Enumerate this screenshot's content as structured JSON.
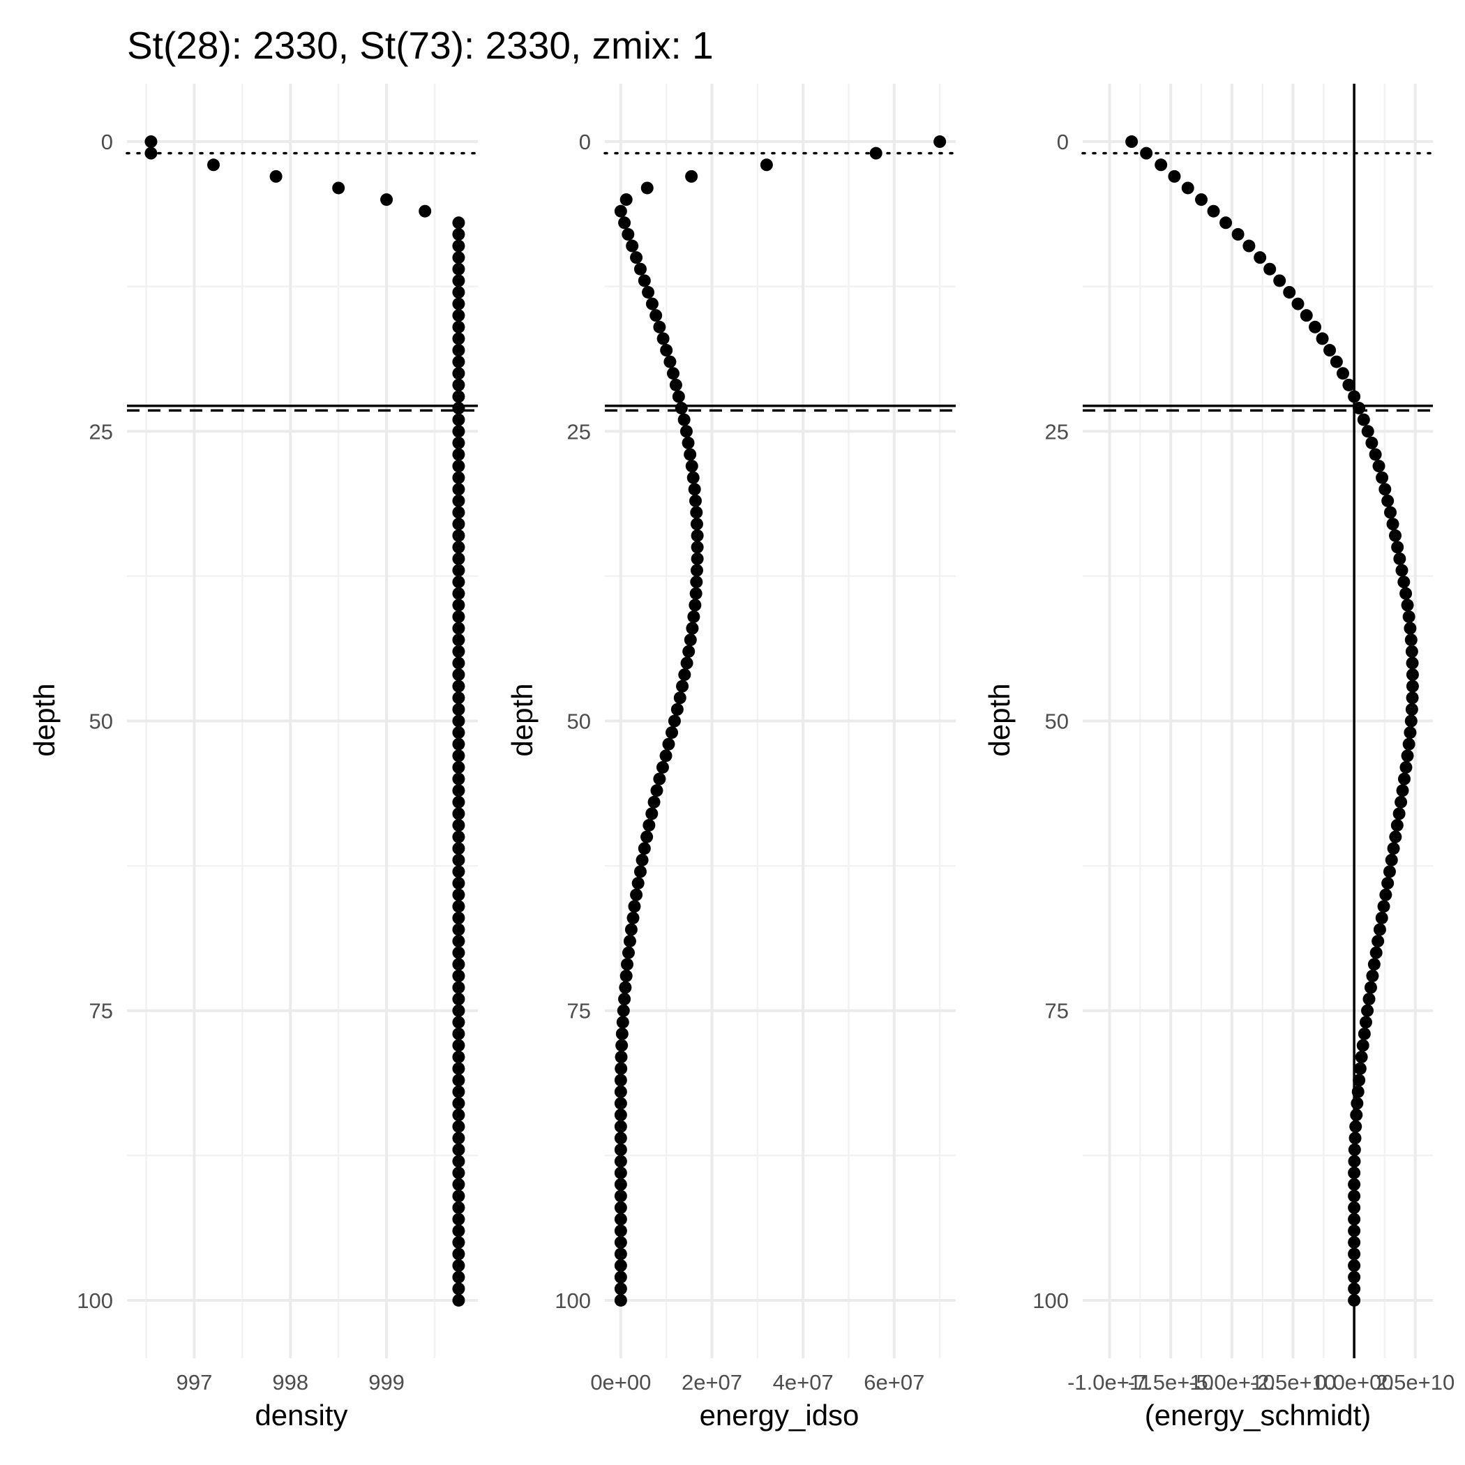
{
  "title": "St(28): 2330, St(73): 2330, zmix: 1",
  "reference_lines": {
    "zmix_depth": 1,
    "solid_depth": 22.8,
    "dashed_depth": 23.2,
    "vertical_zero_panel": 3
  },
  "chart_data": [
    {
      "type": "scatter",
      "xlabel": "density",
      "ylabel": "depth",
      "xlim": [
        996.3,
        999.95
      ],
      "ylim": [
        105,
        -5
      ],
      "y_reversed": true,
      "x_ticks": [
        {
          "value": 997,
          "label": "997"
        },
        {
          "value": 998,
          "label": "998"
        },
        {
          "value": 999,
          "label": "999"
        }
      ],
      "y_ticks": [
        {
          "value": 0,
          "label": "0"
        },
        {
          "value": 25,
          "label": "25"
        },
        {
          "value": 50,
          "label": "50"
        },
        {
          "value": 75,
          "label": "75"
        },
        {
          "value": 100,
          "label": "100"
        }
      ],
      "points": {
        "head": [
          [
            996.55,
            0
          ],
          [
            996.55,
            1
          ],
          [
            997.2,
            2
          ],
          [
            997.85,
            3
          ],
          [
            998.5,
            4
          ],
          [
            999.0,
            5
          ],
          [
            999.4,
            6
          ]
        ],
        "constant_from_depth": 7,
        "constant_to_depth": 100,
        "constant_value": 999.75
      }
    },
    {
      "type": "scatter",
      "xlabel": "energy_idso",
      "ylabel": "depth",
      "xlim": [
        -3500000,
        73500000
      ],
      "ylim": [
        105,
        -5
      ],
      "y_reversed": true,
      "x_ticks": [
        {
          "value": 0,
          "label": "0e+00"
        },
        {
          "value": 20000000,
          "label": "2e+07"
        },
        {
          "value": 40000000,
          "label": "4e+07"
        },
        {
          "value": 60000000,
          "label": "6e+07"
        }
      ],
      "y_ticks": [
        {
          "value": 0,
          "label": "0"
        },
        {
          "value": 25,
          "label": "25"
        },
        {
          "value": 50,
          "label": "50"
        },
        {
          "value": 75,
          "label": "75"
        },
        {
          "value": 100,
          "label": "100"
        }
      ],
      "points": [
        [
          70000000,
          0
        ],
        [
          56000000,
          1
        ],
        [
          32000000,
          2
        ],
        [
          15500000,
          3
        ],
        [
          5800000,
          4
        ],
        [
          1200000,
          5
        ],
        [
          0,
          6
        ],
        [
          800000,
          7
        ],
        [
          1600000,
          8
        ],
        [
          2500000,
          9
        ],
        [
          3400000,
          10
        ],
        [
          4300000,
          11
        ],
        [
          5200000,
          12
        ],
        [
          6000000,
          13
        ],
        [
          6900000,
          14
        ],
        [
          7700000,
          15
        ],
        [
          8500000,
          16
        ],
        [
          9300000,
          17
        ],
        [
          10000000,
          18
        ],
        [
          10800000,
          19
        ],
        [
          11500000,
          20
        ],
        [
          12100000,
          21
        ],
        [
          12700000,
          22
        ],
        [
          13300000,
          23
        ],
        [
          13900000,
          24
        ],
        [
          14400000,
          25
        ],
        [
          14800000,
          26
        ],
        [
          15200000,
          27
        ],
        [
          15600000,
          28
        ],
        [
          15900000,
          29
        ],
        [
          16200000,
          30
        ],
        [
          16400000,
          31
        ],
        [
          16600000,
          32
        ],
        [
          16700000,
          33
        ],
        [
          16800000,
          34
        ],
        [
          16800000,
          35
        ],
        [
          16800000,
          36
        ],
        [
          16700000,
          37
        ],
        [
          16600000,
          38
        ],
        [
          16500000,
          39
        ],
        [
          16300000,
          40
        ],
        [
          16000000,
          41
        ],
        [
          15700000,
          42
        ],
        [
          15300000,
          43
        ],
        [
          14900000,
          44
        ],
        [
          14500000,
          45
        ],
        [
          14000000,
          46
        ],
        [
          13500000,
          47
        ],
        [
          13000000,
          48
        ],
        [
          12400000,
          49
        ],
        [
          11800000,
          50
        ],
        [
          11200000,
          51
        ],
        [
          10500000,
          52
        ],
        [
          9900000,
          53
        ],
        [
          9200000,
          54
        ],
        [
          8500000,
          55
        ],
        [
          7900000,
          56
        ],
        [
          7300000,
          57
        ],
        [
          6800000,
          58
        ],
        [
          6200000,
          59
        ],
        [
          5700000,
          60
        ],
        [
          5200000,
          61
        ],
        [
          4700000,
          62
        ],
        [
          4300000,
          63
        ],
        [
          3800000,
          64
        ],
        [
          3400000,
          65
        ],
        [
          3000000,
          66
        ],
        [
          2700000,
          67
        ],
        [
          2300000,
          68
        ],
        [
          2000000,
          69
        ],
        [
          1700000,
          70
        ],
        [
          1400000,
          71
        ],
        [
          1200000,
          72
        ],
        [
          1000000,
          73
        ],
        [
          800000,
          74
        ],
        [
          600000,
          75
        ],
        [
          450000,
          76
        ],
        [
          300000,
          77
        ],
        [
          200000,
          78
        ],
        [
          100000,
          79
        ],
        [
          50000,
          80
        ],
        [
          0,
          81
        ],
        [
          0,
          82
        ],
        [
          0,
          83
        ],
        [
          0,
          84
        ],
        [
          0,
          85
        ],
        [
          0,
          86
        ],
        [
          0,
          87
        ],
        [
          0,
          88
        ],
        [
          0,
          89
        ],
        [
          0,
          90
        ],
        [
          0,
          91
        ],
        [
          0,
          92
        ],
        [
          0,
          93
        ],
        [
          0,
          94
        ],
        [
          0,
          95
        ],
        [
          0,
          96
        ],
        [
          0,
          97
        ],
        [
          0,
          98
        ],
        [
          0,
          99
        ],
        [
          0,
          100
        ]
      ]
    },
    {
      "type": "scatter",
      "xlabel": "(energy_schmidt)",
      "ylabel": "depth",
      "xlim": [
        -111000000000.0,
        32200000000.0
      ],
      "ylim": [
        105,
        -5
      ],
      "y_reversed": true,
      "x_ticks": [
        {
          "value": -100000000000.0,
          "label": "-1.0e+11"
        },
        {
          "value": -75000000000.0,
          "label": "-7.5e+10"
        },
        {
          "value": -50000000000.0,
          "label": "-5.0e+10"
        },
        {
          "value": -25000000000.0,
          "label": "-2.5e+10"
        },
        {
          "value": 0,
          "label": "0.0e+00"
        },
        {
          "value": 25000000000.0,
          "label": "2.5e+10"
        }
      ],
      "y_ticks": [
        {
          "value": 0,
          "label": "0"
        },
        {
          "value": 25,
          "label": "25"
        },
        {
          "value": 50,
          "label": "50"
        },
        {
          "value": 75,
          "label": "75"
        },
        {
          "value": 100,
          "label": "100"
        }
      ],
      "points": [
        [
          -91000000000,
          0
        ],
        [
          -85000000000,
          1
        ],
        [
          -79000000000,
          2
        ],
        [
          -73500000000,
          3
        ],
        [
          -68000000000,
          4
        ],
        [
          -62500000000,
          5
        ],
        [
          -57500000000,
          6
        ],
        [
          -52500000000,
          7
        ],
        [
          -47500000000,
          8
        ],
        [
          -43000000000,
          9
        ],
        [
          -38500000000,
          10
        ],
        [
          -34500000000,
          11
        ],
        [
          -30500000000,
          12
        ],
        [
          -26500000000,
          13
        ],
        [
          -23000000000,
          14
        ],
        [
          -19500000000,
          15
        ],
        [
          -16000000000,
          16
        ],
        [
          -13000000000,
          17
        ],
        [
          -10000000000,
          18
        ],
        [
          -7200000000,
          19
        ],
        [
          -4600000000,
          20
        ],
        [
          -2200000000,
          21
        ],
        [
          0,
          22
        ],
        [
          2000000000,
          23
        ],
        [
          3900000000,
          24
        ],
        [
          5600000000,
          25
        ],
        [
          7200000000,
          26
        ],
        [
          8700000000,
          27
        ],
        [
          10100000000,
          28
        ],
        [
          11400000000,
          29
        ],
        [
          12600000000,
          30
        ],
        [
          13700000000,
          31
        ],
        [
          14800000000,
          32
        ],
        [
          15800000000,
          33
        ],
        [
          16800000000,
          34
        ],
        [
          17700000000,
          35
        ],
        [
          18600000000,
          36
        ],
        [
          19500000000,
          37
        ],
        [
          20300000000,
          38
        ],
        [
          21100000000,
          39
        ],
        [
          21800000000,
          40
        ],
        [
          22400000000,
          41
        ],
        [
          22900000000,
          42
        ],
        [
          23300000000,
          43
        ],
        [
          23600000000,
          44
        ],
        [
          23800000000,
          45
        ],
        [
          23900000000,
          46
        ],
        [
          23900000000,
          47
        ],
        [
          23800000000,
          48
        ],
        [
          23600000000,
          49
        ],
        [
          23300000000,
          50
        ],
        [
          22900000000,
          51
        ],
        [
          22400000000,
          52
        ],
        [
          21800000000,
          53
        ],
        [
          21200000000,
          54
        ],
        [
          20500000000,
          55
        ],
        [
          19800000000,
          56
        ],
        [
          19100000000,
          57
        ],
        [
          18400000000,
          58
        ],
        [
          17600000000,
          59
        ],
        [
          16900000000,
          60
        ],
        [
          16100000000,
          61
        ],
        [
          15300000000,
          62
        ],
        [
          14500000000,
          63
        ],
        [
          13700000000,
          64
        ],
        [
          12900000000,
          65
        ],
        [
          12100000000,
          66
        ],
        [
          11300000000,
          67
        ],
        [
          10500000000,
          68
        ],
        [
          9700000000,
          69
        ],
        [
          9000000000,
          70
        ],
        [
          8200000000,
          71
        ],
        [
          7500000000,
          72
        ],
        [
          6800000000,
          73
        ],
        [
          6100000000,
          74
        ],
        [
          5400000000,
          75
        ],
        [
          4800000000,
          76
        ],
        [
          4200000000,
          77
        ],
        [
          3600000000,
          78
        ],
        [
          3000000000,
          79
        ],
        [
          2500000000,
          80
        ],
        [
          2000000000,
          81
        ],
        [
          1600000000,
          82
        ],
        [
          1200000000,
          83
        ],
        [
          900000000,
          84
        ],
        [
          600000000,
          85
        ],
        [
          400000000,
          86
        ],
        [
          200000000,
          87
        ],
        [
          100000000,
          88
        ],
        [
          0,
          89
        ],
        [
          0,
          90
        ],
        [
          0,
          91
        ],
        [
          0,
          92
        ],
        [
          0,
          93
        ],
        [
          0,
          94
        ],
        [
          0,
          95
        ],
        [
          0,
          96
        ],
        [
          0,
          97
        ],
        [
          0,
          98
        ],
        [
          0,
          99
        ],
        [
          0,
          100
        ]
      ]
    }
  ]
}
